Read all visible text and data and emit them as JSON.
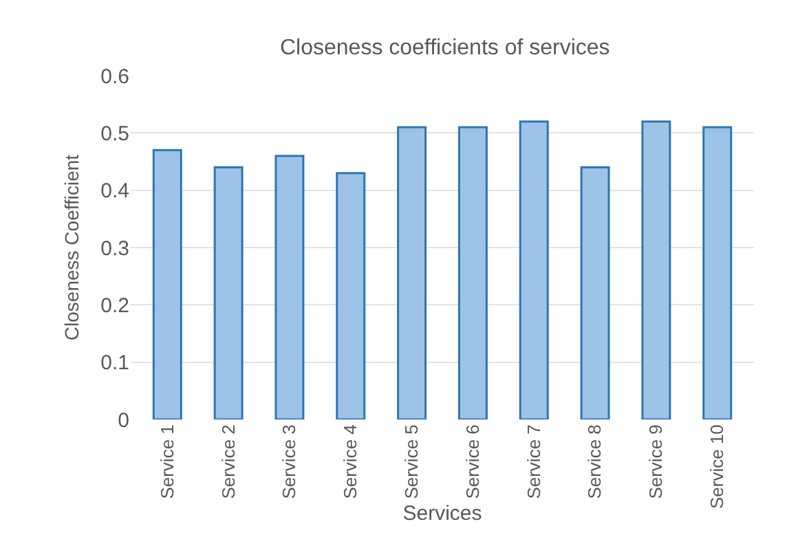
{
  "chart_data": {
    "type": "bar",
    "title": "Closeness coefficients of services",
    "xlabel": "Services",
    "ylabel": "Closeness Coefficient",
    "categories": [
      "Service 1",
      "Service 2",
      "Service 3",
      "Service 4",
      "Service 5",
      "Service 6",
      "Service 7",
      "Service 8",
      "Service 9",
      "Service 10"
    ],
    "values": [
      0.47,
      0.44,
      0.46,
      0.43,
      0.51,
      0.51,
      0.52,
      0.44,
      0.52,
      0.51
    ],
    "color": "#9dc3e6",
    "ylim": [
      0,
      0.6
    ],
    "yticks": [
      0,
      0.1,
      0.2,
      0.3,
      0.4,
      0.5,
      0.6
    ],
    "grid": "y"
  }
}
